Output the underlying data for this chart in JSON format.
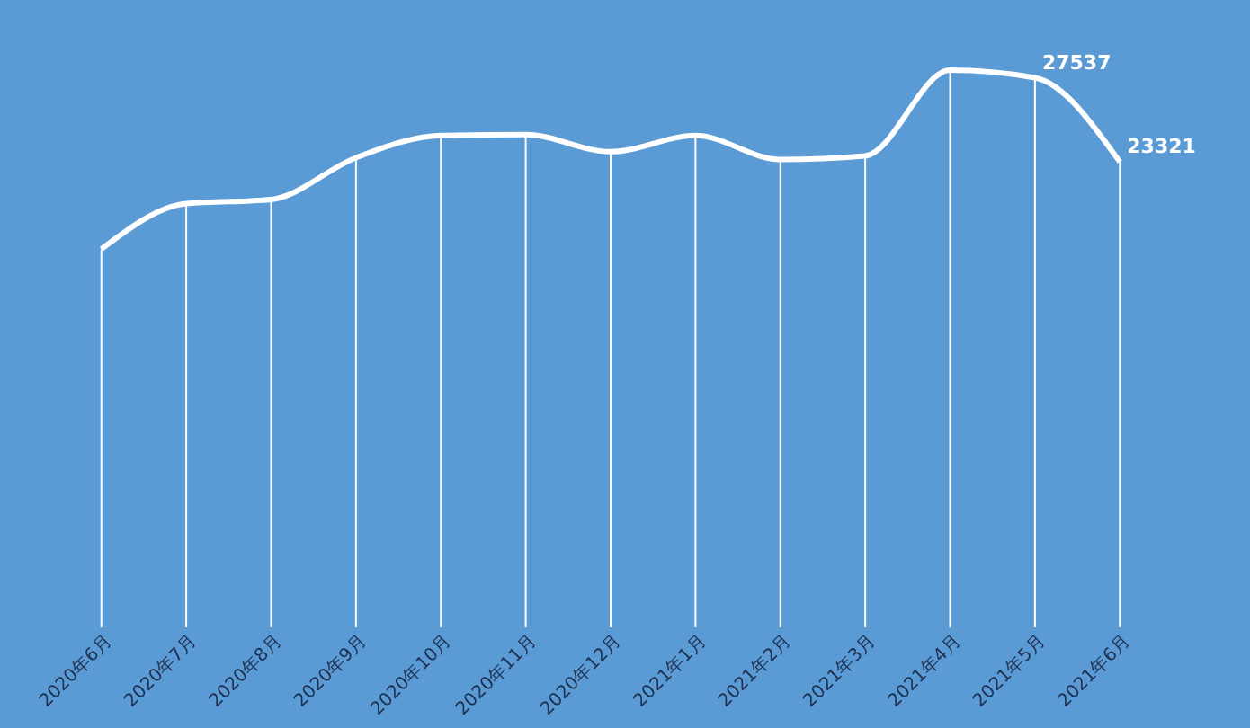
{
  "chart_data": {
    "type": "line",
    "categories": [
      "2020年6月",
      "2020年7月",
      "2020年8月",
      "2020年9月",
      "2020年10月",
      "2020年11月",
      "2020年12月",
      "2021年1月",
      "2021年2月",
      "2021年3月",
      "2021年4月",
      "2021年5月",
      "2021年6月"
    ],
    "series": [
      {
        "color": "#ffffff",
        "values": [
          18950,
          21230,
          21440,
          23530,
          24640,
          24690,
          23830,
          24640,
          23440,
          23620,
          27920,
          27537,
          23321
        ],
        "value_labels": [
          null,
          null,
          null,
          null,
          null,
          null,
          null,
          null,
          null,
          null,
          null,
          "27537",
          "23321"
        ]
      }
    ],
    "tick_labels": "x",
    "grid": "x",
    "marker": "none",
    "line_style": "solid"
  }
}
